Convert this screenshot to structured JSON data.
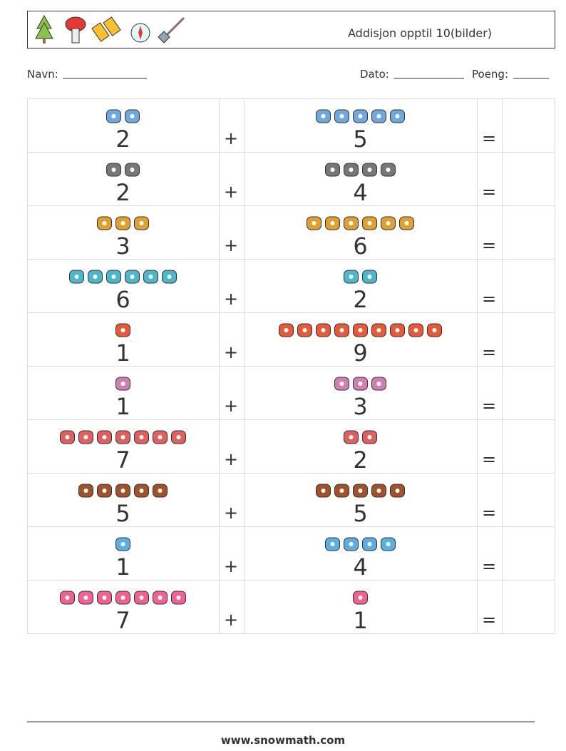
{
  "header": {
    "title": "Addisjon opptil 10(bilder)"
  },
  "fields": {
    "name": "Navn:",
    "date": "Dato:",
    "score": "Poeng:"
  },
  "table": {
    "rows": [
      {
        "a": 2,
        "op": "+",
        "b": 5,
        "eq": "="
      },
      {
        "a": 2,
        "op": "+",
        "b": 4,
        "eq": "="
      },
      {
        "a": 3,
        "op": "+",
        "b": 6,
        "eq": "="
      },
      {
        "a": 6,
        "op": "+",
        "b": 2,
        "eq": "="
      },
      {
        "a": 1,
        "op": "+",
        "b": 9,
        "eq": "="
      },
      {
        "a": 1,
        "op": "+",
        "b": 3,
        "eq": "="
      },
      {
        "a": 7,
        "op": "+",
        "b": 2,
        "eq": "="
      },
      {
        "a": 5,
        "op": "+",
        "b": 5,
        "eq": "="
      },
      {
        "a": 1,
        "op": "+",
        "b": 4,
        "eq": "="
      },
      {
        "a": 7,
        "op": "+",
        "b": 1,
        "eq": "="
      }
    ]
  },
  "footer": {
    "url": "www.snowmath.com"
  }
}
